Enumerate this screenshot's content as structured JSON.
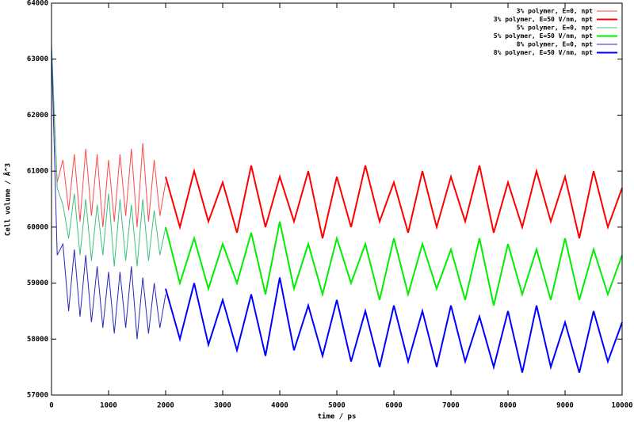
{
  "chart_data": {
    "type": "line",
    "xlabel": "time / ps",
    "ylabel": "Cell volume / Å^3",
    "xlim": [
      0,
      10000
    ],
    "ylim": [
      57000,
      64000
    ],
    "xticks": [
      0,
      1000,
      2000,
      3000,
      4000,
      5000,
      6000,
      7000,
      8000,
      9000,
      10000
    ],
    "yticks": [
      57000,
      58000,
      59000,
      60000,
      61000,
      62000,
      63000,
      64000
    ],
    "grid": false,
    "legend": "top-right",
    "series": [
      {
        "name": "3% polymer, E=0, npt",
        "color": "#ff4848",
        "line_width": 1,
        "x": [
          0,
          100,
          200,
          300,
          400,
          500,
          600,
          700,
          800,
          900,
          1000,
          1100,
          1200,
          1300,
          1400,
          1500,
          1600,
          1700,
          1800,
          1900,
          2000
        ],
        "values": [
          63000,
          60800,
          61200,
          60300,
          61300,
          60100,
          61400,
          60200,
          61300,
          60000,
          61200,
          60100,
          61300,
          60200,
          61400,
          60000,
          61500,
          60100,
          61200,
          60200,
          60800
        ]
      },
      {
        "name": "3% polymer, E=50 V/nm, npt",
        "color": "#ff0000",
        "line_width": 2,
        "x": [
          2000,
          2250,
          2500,
          2750,
          3000,
          3250,
          3500,
          3750,
          4000,
          4250,
          4500,
          4750,
          5000,
          5250,
          5500,
          5750,
          6000,
          6250,
          6500,
          6750,
          7000,
          7250,
          7500,
          7750,
          8000,
          8250,
          8500,
          8750,
          9000,
          9250,
          9500,
          9750,
          10000
        ],
        "values": [
          60900,
          60000,
          61000,
          60100,
          60800,
          59900,
          61100,
          60000,
          60900,
          60100,
          61000,
          59800,
          60900,
          60000,
          61100,
          60100,
          60800,
          59900,
          61000,
          60000,
          60900,
          60100,
          61100,
          59900,
          60800,
          60000,
          61000,
          60100,
          60900,
          59800,
          61000,
          60000,
          60700
        ]
      },
      {
        "name": "5% polymer, E=0, npt",
        "color": "#40c080",
        "line_width": 1,
        "x": [
          0,
          100,
          200,
          300,
          400,
          500,
          600,
          700,
          800,
          900,
          1000,
          1100,
          1200,
          1300,
          1400,
          1500,
          1600,
          1700,
          1800,
          1900,
          2000
        ],
        "values": [
          63300,
          60700,
          60400,
          59800,
          60600,
          59500,
          60500,
          59400,
          60400,
          59500,
          60600,
          59300,
          60500,
          59400,
          60400,
          59300,
          60500,
          59400,
          60300,
          59500,
          60000
        ]
      },
      {
        "name": "5% polymer, E=50 V/nm, npt",
        "color": "#00ee00",
        "line_width": 2,
        "x": [
          2000,
          2250,
          2500,
          2750,
          3000,
          3250,
          3500,
          3750,
          4000,
          4250,
          4500,
          4750,
          5000,
          5250,
          5500,
          5750,
          6000,
          6250,
          6500,
          6750,
          7000,
          7250,
          7500,
          7750,
          8000,
          8250,
          8500,
          8750,
          9000,
          9250,
          9500,
          9750,
          10000
        ],
        "values": [
          60000,
          59000,
          59800,
          58900,
          59700,
          59000,
          59900,
          58800,
          60100,
          58900,
          59700,
          58800,
          59800,
          59000,
          59700,
          58700,
          59800,
          58800,
          59700,
          58900,
          59600,
          58700,
          59800,
          58600,
          59700,
          58800,
          59600,
          58700,
          59800,
          58700,
          59600,
          58800,
          59500
        ]
      },
      {
        "name": "8% polymer, E=0, npt",
        "color": "#2828b8",
        "line_width": 1,
        "x": [
          0,
          100,
          200,
          300,
          400,
          500,
          600,
          700,
          800,
          900,
          1000,
          1100,
          1200,
          1300,
          1400,
          1500,
          1600,
          1700,
          1800,
          1900,
          2000
        ],
        "values": [
          63200,
          59500,
          59700,
          58500,
          59600,
          58400,
          59500,
          58300,
          59300,
          58200,
          59200,
          58100,
          59200,
          58200,
          59300,
          58000,
          59100,
          58100,
          59000,
          58200,
          58800
        ]
      },
      {
        "name": "8% polymer, E=50 V/nm, npt",
        "color": "#0000ff",
        "line_width": 2,
        "x": [
          2000,
          2250,
          2500,
          2750,
          3000,
          3250,
          3500,
          3750,
          4000,
          4250,
          4500,
          4750,
          5000,
          5250,
          5500,
          5750,
          6000,
          6250,
          6500,
          6750,
          7000,
          7250,
          7500,
          7750,
          8000,
          8250,
          8500,
          8750,
          9000,
          9250,
          9500,
          9750,
          10000
        ],
        "values": [
          58900,
          58000,
          59000,
          57900,
          58700,
          57800,
          58800,
          57700,
          59100,
          57800,
          58600,
          57700,
          58700,
          57600,
          58500,
          57500,
          58600,
          57600,
          58500,
          57500,
          58600,
          57600,
          58400,
          57500,
          58500,
          57400,
          58600,
          57500,
          58300,
          57400,
          58500,
          57600,
          58300
        ]
      }
    ]
  }
}
